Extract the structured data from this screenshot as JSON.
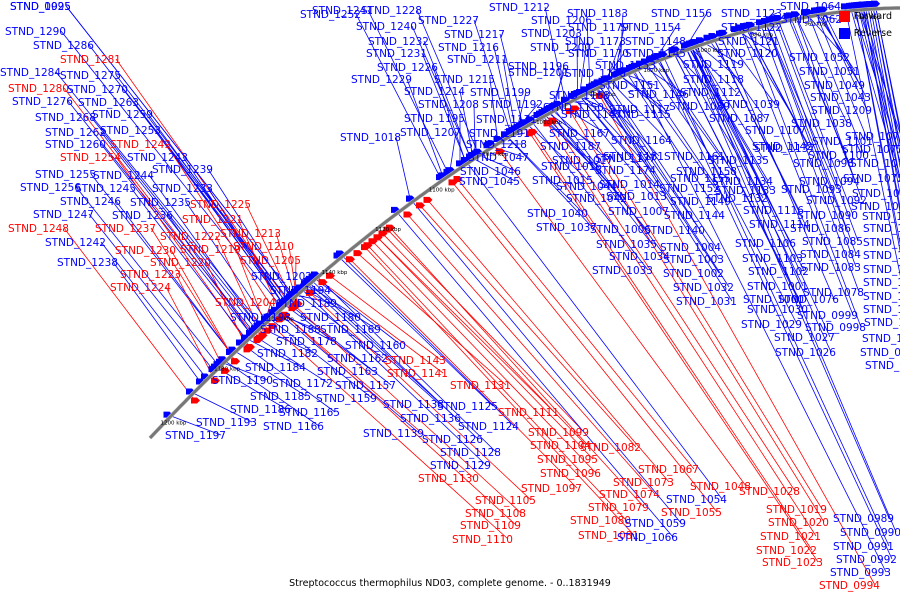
{
  "caption": "Streptococcus thermophilus ND03, complete genome. - 0..1831949",
  "legend": [
    {
      "label": "Forward",
      "color": "#ff0000"
    },
    {
      "label": "Reverse",
      "color": "#0000ff"
    }
  ],
  "colors": {
    "forward": "#ff0000",
    "reverse": "#0000ff",
    "backbone": "#777777"
  },
  "ticks": [
    "1200 kbp",
    "1180 kbp",
    "1160 kbp",
    "1140 kbp",
    "1120 kbp",
    "1100 kbp",
    "1080 kbp",
    "1060 kbp",
    "1040 kbp",
    "1020 kbp",
    "1000 kbp",
    "980 kbp",
    "960 kbp",
    "940 kbp"
  ],
  "genes": [
    {
      "id": "STND_1290",
      "strand": "reverse"
    },
    {
      "id": "STND_1286",
      "strand": "reverse"
    },
    {
      "id": "STND_1281",
      "strand": "forward"
    },
    {
      "id": "STND_1284",
      "strand": "reverse"
    },
    {
      "id": "STND_1275",
      "strand": "reverse"
    },
    {
      "id": "STND_1280",
      "strand": "forward"
    },
    {
      "id": "STND_1270",
      "strand": "reverse"
    },
    {
      "id": "STND_1276",
      "strand": "reverse"
    },
    {
      "id": "STND_1263",
      "strand": "reverse"
    },
    {
      "id": "STND_1259",
      "strand": "reverse"
    },
    {
      "id": "STND_1268",
      "strand": "reverse"
    },
    {
      "id": "STND_1253",
      "strand": "reverse"
    },
    {
      "id": "STND_1262",
      "strand": "reverse"
    },
    {
      "id": "STND_1249",
      "strand": "forward"
    },
    {
      "id": "STND_1260",
      "strand": "reverse"
    },
    {
      "id": "STND_1243",
      "strand": "reverse"
    },
    {
      "id": "STND_1254",
      "strand": "forward"
    },
    {
      "id": "STND_1239",
      "strand": "reverse"
    },
    {
      "id": "STND_1255",
      "strand": "reverse"
    },
    {
      "id": "STND_1244",
      "strand": "reverse"
    },
    {
      "id": "STND_1256",
      "strand": "reverse"
    },
    {
      "id": "STND_1245",
      "strand": "reverse"
    },
    {
      "id": "STND_1233",
      "strand": "reverse"
    },
    {
      "id": "STND_1246",
      "strand": "reverse"
    },
    {
      "id": "STND_1235",
      "strand": "reverse"
    },
    {
      "id": "STND_1225",
      "strand": "forward"
    },
    {
      "id": "STND_1247",
      "strand": "reverse"
    },
    {
      "id": "STND_1236",
      "strand": "reverse"
    },
    {
      "id": "STND_1221",
      "strand": "forward"
    },
    {
      "id": "STND_1248",
      "strand": "forward"
    },
    {
      "id": "STND_1237",
      "strand": "forward"
    },
    {
      "id": "STND_1222",
      "strand": "forward"
    },
    {
      "id": "STND_1213",
      "strand": "forward"
    },
    {
      "id": "STND_1242",
      "strand": "reverse"
    },
    {
      "id": "STND_1230",
      "strand": "forward"
    },
    {
      "id": "STND_1219",
      "strand": "forward"
    },
    {
      "id": "STND_1210",
      "strand": "forward"
    },
    {
      "id": "STND_1238",
      "strand": "reverse"
    },
    {
      "id": "STND_1220",
      "strand": "forward"
    },
    {
      "id": "STND_1205",
      "strand": "forward"
    },
    {
      "id": "STND_1223",
      "strand": "forward"
    },
    {
      "id": "STND_1224",
      "strand": "forward"
    },
    {
      "id": "STND_1202",
      "strand": "reverse"
    },
    {
      "id": "STND_1194",
      "strand": "reverse"
    },
    {
      "id": "STND_1204",
      "strand": "forward"
    },
    {
      "id": "STND_1189",
      "strand": "reverse"
    },
    {
      "id": "STND_1198",
      "strand": "reverse"
    },
    {
      "id": "STND_1180",
      "strand": "reverse"
    },
    {
      "id": "STND_1188",
      "strand": "reverse"
    },
    {
      "id": "STND_1169",
      "strand": "reverse"
    },
    {
      "id": "STND_1178",
      "strand": "reverse"
    },
    {
      "id": "STND_1160",
      "strand": "reverse"
    },
    {
      "id": "STND_1182",
      "strand": "reverse"
    },
    {
      "id": "STND_1162",
      "strand": "reverse"
    },
    {
      "id": "STND_1143",
      "strand": "forward"
    },
    {
      "id": "STND_1184",
      "strand": "reverse"
    },
    {
      "id": "STND_1163",
      "strand": "reverse"
    },
    {
      "id": "STND_1141",
      "strand": "forward"
    },
    {
      "id": "STND_1190",
      "strand": "reverse"
    },
    {
      "id": "STND_1172",
      "strand": "reverse"
    },
    {
      "id": "STND_1157",
      "strand": "reverse"
    },
    {
      "id": "STND_1131",
      "strand": "forward"
    },
    {
      "id": "STND_1185",
      "strand": "reverse"
    },
    {
      "id": "STND_1159",
      "strand": "reverse"
    },
    {
      "id": "STND_1186",
      "strand": "reverse"
    },
    {
      "id": "STND_1165",
      "strand": "reverse"
    },
    {
      "id": "STND_1138",
      "strand": "reverse"
    },
    {
      "id": "STND_1125",
      "strand": "reverse"
    },
    {
      "id": "STND_1111",
      "strand": "forward"
    },
    {
      "id": "STND_1193",
      "strand": "reverse"
    },
    {
      "id": "STND_1166",
      "strand": "reverse"
    },
    {
      "id": "STND_1136",
      "strand": "reverse"
    },
    {
      "id": "STND_1124",
      "strand": "reverse"
    },
    {
      "id": "STND_1197",
      "strand": "reverse"
    },
    {
      "id": "STND_1139",
      "strand": "reverse"
    },
    {
      "id": "STND_1126",
      "strand": "reverse"
    },
    {
      "id": "STND_1099",
      "strand": "forward"
    },
    {
      "id": "STND_1104",
      "strand": "forward"
    },
    {
      "id": "STND_1082",
      "strand": "forward"
    },
    {
      "id": "STND_1128",
      "strand": "reverse"
    },
    {
      "id": "STND_1095",
      "strand": "forward"
    },
    {
      "id": "STND_1129",
      "strand": "reverse"
    },
    {
      "id": "STND_1096",
      "strand": "forward"
    },
    {
      "id": "STND_1067",
      "strand": "forward"
    },
    {
      "id": "STND_1130",
      "strand": "forward"
    },
    {
      "id": "STND_1073",
      "strand": "forward"
    },
    {
      "id": "STND_1097",
      "strand": "forward"
    },
    {
      "id": "STND_1074",
      "strand": "forward"
    },
    {
      "id": "STND_1048",
      "strand": "forward"
    },
    {
      "id": "STND_1105",
      "strand": "forward"
    },
    {
      "id": "STND_1054",
      "strand": "reverse"
    },
    {
      "id": "STND_1028",
      "strand": "forward"
    },
    {
      "id": "STND_1079",
      "strand": "forward"
    },
    {
      "id": "STND_1055",
      "strand": "forward"
    },
    {
      "id": "STND_1108",
      "strand": "forward"
    },
    {
      "id": "STND_1080",
      "strand": "forward"
    },
    {
      "id": "STND_1059",
      "strand": "reverse"
    },
    {
      "id": "STND_1019",
      "strand": "forward"
    },
    {
      "id": "STND_1109",
      "strand": "forward"
    },
    {
      "id": "STND_1020",
      "strand": "forward"
    },
    {
      "id": "STND_1081",
      "strand": "forward"
    },
    {
      "id": "STND_1066",
      "strand": "reverse"
    },
    {
      "id": "STND_1021",
      "strand": "forward"
    },
    {
      "id": "STND_1110",
      "strand": "forward"
    },
    {
      "id": "STND_1022",
      "strand": "forward"
    },
    {
      "id": "STND_1023",
      "strand": "forward"
    },
    {
      "id": "STND_0989",
      "strand": "reverse"
    },
    {
      "id": "STND_0990",
      "strand": "reverse"
    },
    {
      "id": "STND_0991",
      "strand": "reverse"
    },
    {
      "id": "STND_0992",
      "strand": "reverse"
    },
    {
      "id": "STND_0993",
      "strand": "reverse"
    },
    {
      "id": "STND_0994",
      "strand": "forward"
    },
    {
      "id": "STND_1252",
      "strand": "reverse"
    },
    {
      "id": "STND_1241",
      "strand": "reverse"
    },
    {
      "id": "STND_1228",
      "strand": "reverse"
    },
    {
      "id": "STND_1212",
      "strand": "reverse"
    },
    {
      "id": "STND_1240",
      "strand": "reverse"
    },
    {
      "id": "STND_1227",
      "strand": "reverse"
    },
    {
      "id": "STND_1206",
      "strand": "reverse"
    },
    {
      "id": "STND_1183",
      "strand": "reverse"
    },
    {
      "id": "STND_1156",
      "strand": "reverse"
    },
    {
      "id": "STND_1123",
      "strand": "reverse"
    },
    {
      "id": "STND_1064",
      "strand": "reverse"
    },
    {
      "id": "STND_1062",
      "strand": "reverse"
    },
    {
      "id": "STND_1217",
      "strand": "reverse"
    },
    {
      "id": "STND_1203",
      "strand": "reverse"
    },
    {
      "id": "STND_1179",
      "strand": "reverse"
    },
    {
      "id": "STND_1154",
      "strand": "reverse"
    },
    {
      "id": "STND_1122",
      "strand": "reverse"
    },
    {
      "id": "STND_1232",
      "strand": "reverse"
    },
    {
      "id": "STND_1216",
      "strand": "reverse"
    },
    {
      "id": "STND_1200",
      "strand": "reverse"
    },
    {
      "id": "STND_1173",
      "strand": "reverse"
    },
    {
      "id": "STND_1148",
      "strand": "reverse"
    },
    {
      "id": "STND_1121",
      "strand": "reverse"
    },
    {
      "id": "STND_1231",
      "strand": "reverse"
    },
    {
      "id": "STND_1211",
      "strand": "reverse"
    },
    {
      "id": "STND_1196",
      "strand": "reverse"
    },
    {
      "id": "STND_1170",
      "strand": "reverse"
    },
    {
      "id": "STND_1145",
      "strand": "reverse"
    },
    {
      "id": "STND_1120",
      "strand": "reverse"
    },
    {
      "id": "STND_1052",
      "strand": "reverse"
    },
    {
      "id": "STND_1226",
      "strand": "reverse"
    },
    {
      "id": "STND_1201",
      "strand": "reverse"
    },
    {
      "id": "STND_1176",
      "strand": "reverse"
    },
    {
      "id": "STND_1153",
      "strand": "reverse"
    },
    {
      "id": "STND_1119",
      "strand": "reverse"
    },
    {
      "id": "STND_1051",
      "strand": "reverse"
    },
    {
      "id": "STND_1229",
      "strand": "reverse"
    },
    {
      "id": "STND_1215",
      "strand": "reverse"
    },
    {
      "id": "STND_1151",
      "strand": "reverse"
    },
    {
      "id": "STND_1118",
      "strand": "reverse"
    },
    {
      "id": "STND_1049",
      "strand": "reverse"
    },
    {
      "id": "STND_1214",
      "strand": "reverse"
    },
    {
      "id": "STND_1199",
      "strand": "reverse"
    },
    {
      "id": "STND_1168",
      "strand": "reverse"
    },
    {
      "id": "STND_1146",
      "strand": "reverse"
    },
    {
      "id": "STND_1112",
      "strand": "reverse"
    },
    {
      "id": "STND_1043",
      "strand": "reverse"
    },
    {
      "id": "STND_1208",
      "strand": "reverse"
    },
    {
      "id": "STND_1192",
      "strand": "reverse"
    },
    {
      "id": "STND_1150",
      "strand": "reverse"
    },
    {
      "id": "STND_1117",
      "strand": "reverse"
    },
    {
      "id": "STND_1089",
      "strand": "reverse"
    },
    {
      "id": "STND_1039",
      "strand": "reverse"
    },
    {
      "id": "STND_1209",
      "strand": "reverse"
    },
    {
      "id": "STND_1195",
      "strand": "reverse"
    },
    {
      "id": "STND_1171",
      "strand": "reverse"
    },
    {
      "id": "STND_1147",
      "strand": "reverse"
    },
    {
      "id": "STND_1115",
      "strand": "reverse"
    },
    {
      "id": "STND_1087",
      "strand": "reverse"
    },
    {
      "id": "STND_1038",
      "strand": "reverse"
    },
    {
      "id": "STND_1207",
      "strand": "reverse"
    },
    {
      "id": "STND_1191",
      "strand": "reverse"
    },
    {
      "id": "STND_1167",
      "strand": "reverse"
    },
    {
      "id": "STND_1107",
      "strand": "reverse"
    },
    {
      "id": "STND_1071",
      "strand": "reverse"
    },
    {
      "id": "STND_1018",
      "strand": "reverse"
    },
    {
      "id": "STND_1218",
      "strand": "reverse"
    },
    {
      "id": "STND_1187",
      "strand": "reverse"
    },
    {
      "id": "STND_1164",
      "strand": "reverse"
    },
    {
      "id": "STND_1142",
      "strand": "reverse"
    },
    {
      "id": "STND_1101",
      "strand": "reverse"
    },
    {
      "id": "STND_1077",
      "strand": "reverse"
    },
    {
      "id": "STND_1047",
      "strand": "reverse"
    },
    {
      "id": "STND_1017",
      "strand": "reverse"
    },
    {
      "id": "STND_1181",
      "strand": "reverse"
    },
    {
      "id": "STND_1161",
      "strand": "reverse"
    },
    {
      "id": "STND_1137",
      "strand": "reverse"
    },
    {
      "id": "STND_1100",
      "strand": "reverse"
    },
    {
      "id": "STND_1075",
      "strand": "reverse"
    },
    {
      "id": "STND_1046",
      "strand": "reverse"
    },
    {
      "id": "STND_1016",
      "strand": "reverse"
    },
    {
      "id": "STND_1177",
      "strand": "reverse"
    },
    {
      "id": "STND_1158",
      "strand": "reverse"
    },
    {
      "id": "STND_1135",
      "strand": "reverse"
    },
    {
      "id": "STND_1098",
      "strand": "reverse"
    },
    {
      "id": "STND_1072",
      "strand": "reverse"
    },
    {
      "id": "STND_1045",
      "strand": "reverse"
    },
    {
      "id": "STND_1015",
      "strand": "reverse"
    },
    {
      "id": "STND_1174",
      "strand": "reverse"
    },
    {
      "id": "STND_1155",
      "strand": "reverse"
    },
    {
      "id": "STND_1134",
      "strand": "reverse"
    },
    {
      "id": "STND_1094",
      "strand": "reverse"
    },
    {
      "id": "STND_1070",
      "strand": "reverse"
    },
    {
      "id": "STND_1044",
      "strand": "reverse"
    },
    {
      "id": "STND_1014",
      "strand": "reverse"
    },
    {
      "id": "STND_1152",
      "strand": "reverse"
    },
    {
      "id": "STND_1133",
      "strand": "reverse"
    },
    {
      "id": "STND_1093",
      "strand": "reverse"
    },
    {
      "id": "STND_1069",
      "strand": "reverse"
    },
    {
      "id": "STND_1042",
      "strand": "reverse"
    },
    {
      "id": "STND_1013",
      "strand": "reverse"
    },
    {
      "id": "STND_1149",
      "strand": "reverse"
    },
    {
      "id": "STND_1132",
      "strand": "reverse"
    },
    {
      "id": "STND_1092",
      "strand": "reverse"
    },
    {
      "id": "STND_1068",
      "strand": "reverse"
    },
    {
      "id": "STND_1040",
      "strand": "reverse"
    },
    {
      "id": "STND_1007",
      "strand": "reverse"
    },
    {
      "id": "STND_1144",
      "strand": "reverse"
    },
    {
      "id": "STND_1116",
      "strand": "reverse"
    },
    {
      "id": "STND_1090",
      "strand": "reverse"
    },
    {
      "id": "STND_1065",
      "strand": "reverse"
    },
    {
      "id": "STND_1037",
      "strand": "reverse"
    },
    {
      "id": "STND_1006",
      "strand": "reverse"
    },
    {
      "id": "STND_1140",
      "strand": "reverse"
    },
    {
      "id": "STND_1114",
      "strand": "reverse"
    },
    {
      "id": "STND_1086",
      "strand": "reverse"
    },
    {
      "id": "STND_1063",
      "strand": "reverse"
    },
    {
      "id": "STND_1035",
      "strand": "reverse"
    },
    {
      "id": "STND_1004",
      "strand": "reverse"
    },
    {
      "id": "STND_1106",
      "strand": "reverse"
    },
    {
      "id": "STND_1085",
      "strand": "reverse"
    },
    {
      "id": "STND_1061",
      "strand": "reverse"
    },
    {
      "id": "STND_1034",
      "strand": "reverse"
    },
    {
      "id": "STND_1003",
      "strand": "reverse"
    },
    {
      "id": "STND_1103",
      "strand": "reverse"
    },
    {
      "id": "STND_1084",
      "strand": "reverse"
    },
    {
      "id": "STND_1060",
      "strand": "reverse"
    },
    {
      "id": "STND_1033",
      "strand": "reverse"
    },
    {
      "id": "STND_1002",
      "strand": "reverse"
    },
    {
      "id": "STND_1102",
      "strand": "reverse"
    },
    {
      "id": "STND_1083",
      "strand": "reverse"
    },
    {
      "id": "STND_1058",
      "strand": "reverse"
    },
    {
      "id": "STND_1032",
      "strand": "reverse"
    },
    {
      "id": "STND_1001",
      "strand": "reverse"
    },
    {
      "id": "STND_1078",
      "strand": "reverse"
    },
    {
      "id": "STND_1057",
      "strand": "reverse"
    },
    {
      "id": "STND_1031",
      "strand": "reverse"
    },
    {
      "id": "STND_1000",
      "strand": "reverse"
    },
    {
      "id": "STND_1076",
      "strand": "reverse"
    },
    {
      "id": "STND_1056",
      "strand": "reverse"
    },
    {
      "id": "STND_1030",
      "strand": "reverse"
    },
    {
      "id": "STND_0999",
      "strand": "reverse"
    },
    {
      "id": "STND_1053",
      "strand": "reverse"
    },
    {
      "id": "STND_1029",
      "strand": "reverse"
    },
    {
      "id": "STND_0998",
      "strand": "reverse"
    },
    {
      "id": "STND_1050",
      "strand": "reverse"
    },
    {
      "id": "STND_1027",
      "strand": "reverse"
    },
    {
      "id": "STND_0997",
      "strand": "reverse"
    },
    {
      "id": "STND_1026",
      "strand": "reverse"
    },
    {
      "id": "STND_0996",
      "strand": "reverse"
    },
    {
      "id": "STND_1025",
      "strand": "reverse"
    },
    {
      "id": "STND_0995",
      "strand": "reverse"
    }
  ]
}
